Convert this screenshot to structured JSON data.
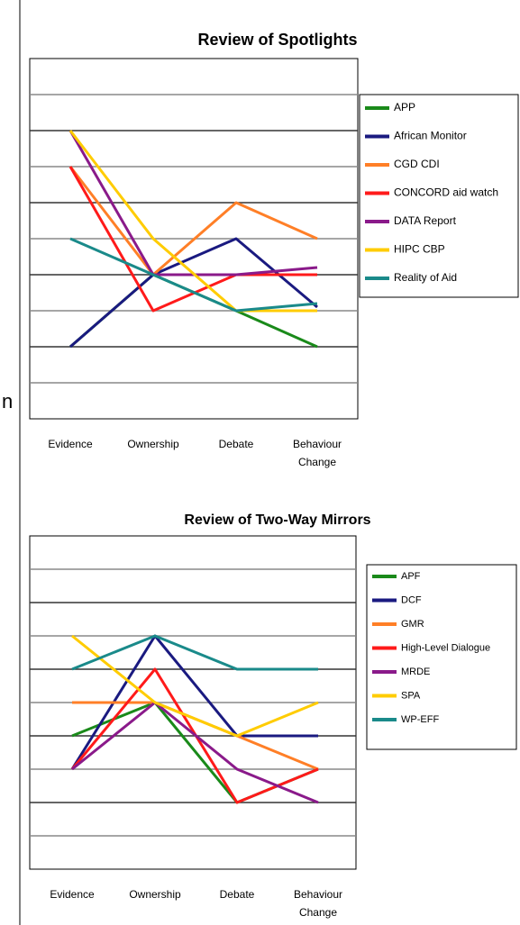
{
  "side_text": "n",
  "chart_data": [
    {
      "type": "line",
      "title": "Review of Spotlights",
      "categories": [
        "Evidence",
        "Ownership",
        "Debate",
        "Behaviour Change"
      ],
      "ylim": [
        0,
        10
      ],
      "yticks": [
        1,
        2,
        3,
        4,
        5,
        6,
        7,
        8,
        9
      ],
      "grid": true,
      "legend": "right",
      "series": [
        {
          "name": "APP",
          "color": "#1a8a1a",
          "values": [
            2,
            4,
            3,
            2
          ]
        },
        {
          "name": "African Monitor",
          "color": "#1a1a80",
          "values": [
            2,
            4,
            5,
            3.1
          ]
        },
        {
          "name": "CGD CDI",
          "color": "#ff7f27",
          "values": [
            7,
            4,
            6,
            5
          ]
        },
        {
          "name": "CONCORD aid watch",
          "color": "#ff1a1a",
          "values": [
            7,
            3,
            4,
            4
          ]
        },
        {
          "name": "DATA Report",
          "color": "#8a1a8a",
          "values": [
            8,
            4,
            4,
            4.2
          ]
        },
        {
          "name": "HIPC CBP",
          "color": "#ffcc00",
          "values": [
            8,
            5,
            3,
            3
          ]
        },
        {
          "name": "Reality of Aid",
          "color": "#1a8a8a",
          "values": [
            5,
            4,
            3,
            3.2
          ]
        }
      ]
    },
    {
      "type": "line",
      "title": "Review of Two-Way Mirrors",
      "categories": [
        "Evidence",
        "Ownership",
        "Debate",
        "Behaviour Change"
      ],
      "ylim": [
        0,
        10
      ],
      "yticks": [
        1,
        2,
        3,
        4,
        5,
        6,
        7,
        8,
        9
      ],
      "grid": true,
      "legend": "right",
      "series": [
        {
          "name": "APF",
          "color": "#1a8a1a",
          "values": [
            4,
            5,
            2,
            3
          ]
        },
        {
          "name": "DCF",
          "color": "#1a1a80",
          "values": [
            3,
            7,
            4,
            4
          ]
        },
        {
          "name": "GMR",
          "color": "#ff7f27",
          "values": [
            5,
            5,
            4,
            3
          ]
        },
        {
          "name": "High-Level Dialogue",
          "color": "#ff1a1a",
          "values": [
            3,
            6,
            2,
            3
          ]
        },
        {
          "name": "MRDE",
          "color": "#8a1a8a",
          "values": [
            3,
            5,
            3,
            2
          ]
        },
        {
          "name": "SPA",
          "color": "#ffcc00",
          "values": [
            7,
            5,
            4,
            5
          ]
        },
        {
          "name": "WP-EFF",
          "color": "#1a8a8a",
          "values": [
            6,
            7,
            6,
            6
          ]
        }
      ]
    }
  ]
}
